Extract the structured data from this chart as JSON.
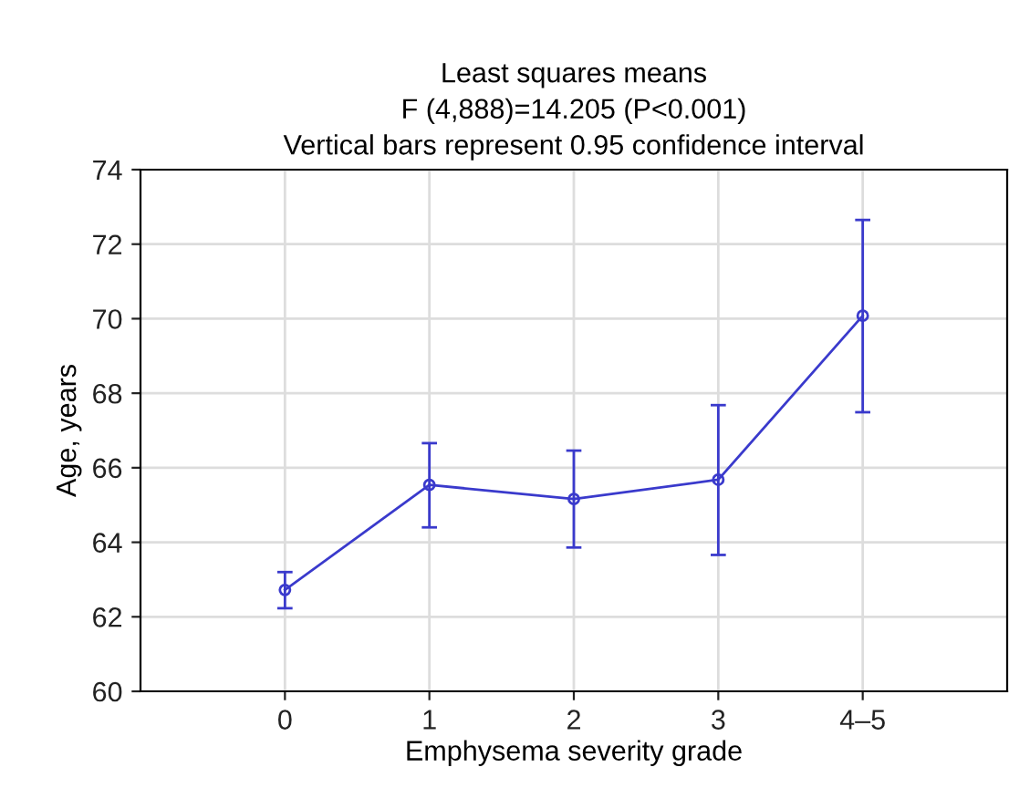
{
  "chart_data": {
    "type": "line",
    "title": "Least squares means\nF (4,888)=14.205 (P<0.001)\nVertical bars represent 0.95 confidence interval",
    "xlabel": "Emphysema severity grade",
    "ylabel": "Age, years",
    "categories": [
      "0",
      "1",
      "2",
      "3",
      "4–5"
    ],
    "series": [
      {
        "color": "#3a3acc",
        "values": [
          62.72,
          65.54,
          65.16,
          65.68,
          70.08
        ],
        "errors": [
          [
            62.23,
            63.2
          ],
          [
            64.4,
            66.66
          ],
          [
            63.86,
            66.46
          ],
          [
            63.66,
            67.68
          ],
          [
            67.49,
            72.65
          ]
        ]
      }
    ],
    "ylim": [
      60,
      74
    ],
    "yticks": [
      60,
      62,
      64,
      66,
      68,
      70,
      72,
      74
    ],
    "grid": true,
    "marker": "circle",
    "line_style": "solid"
  }
}
